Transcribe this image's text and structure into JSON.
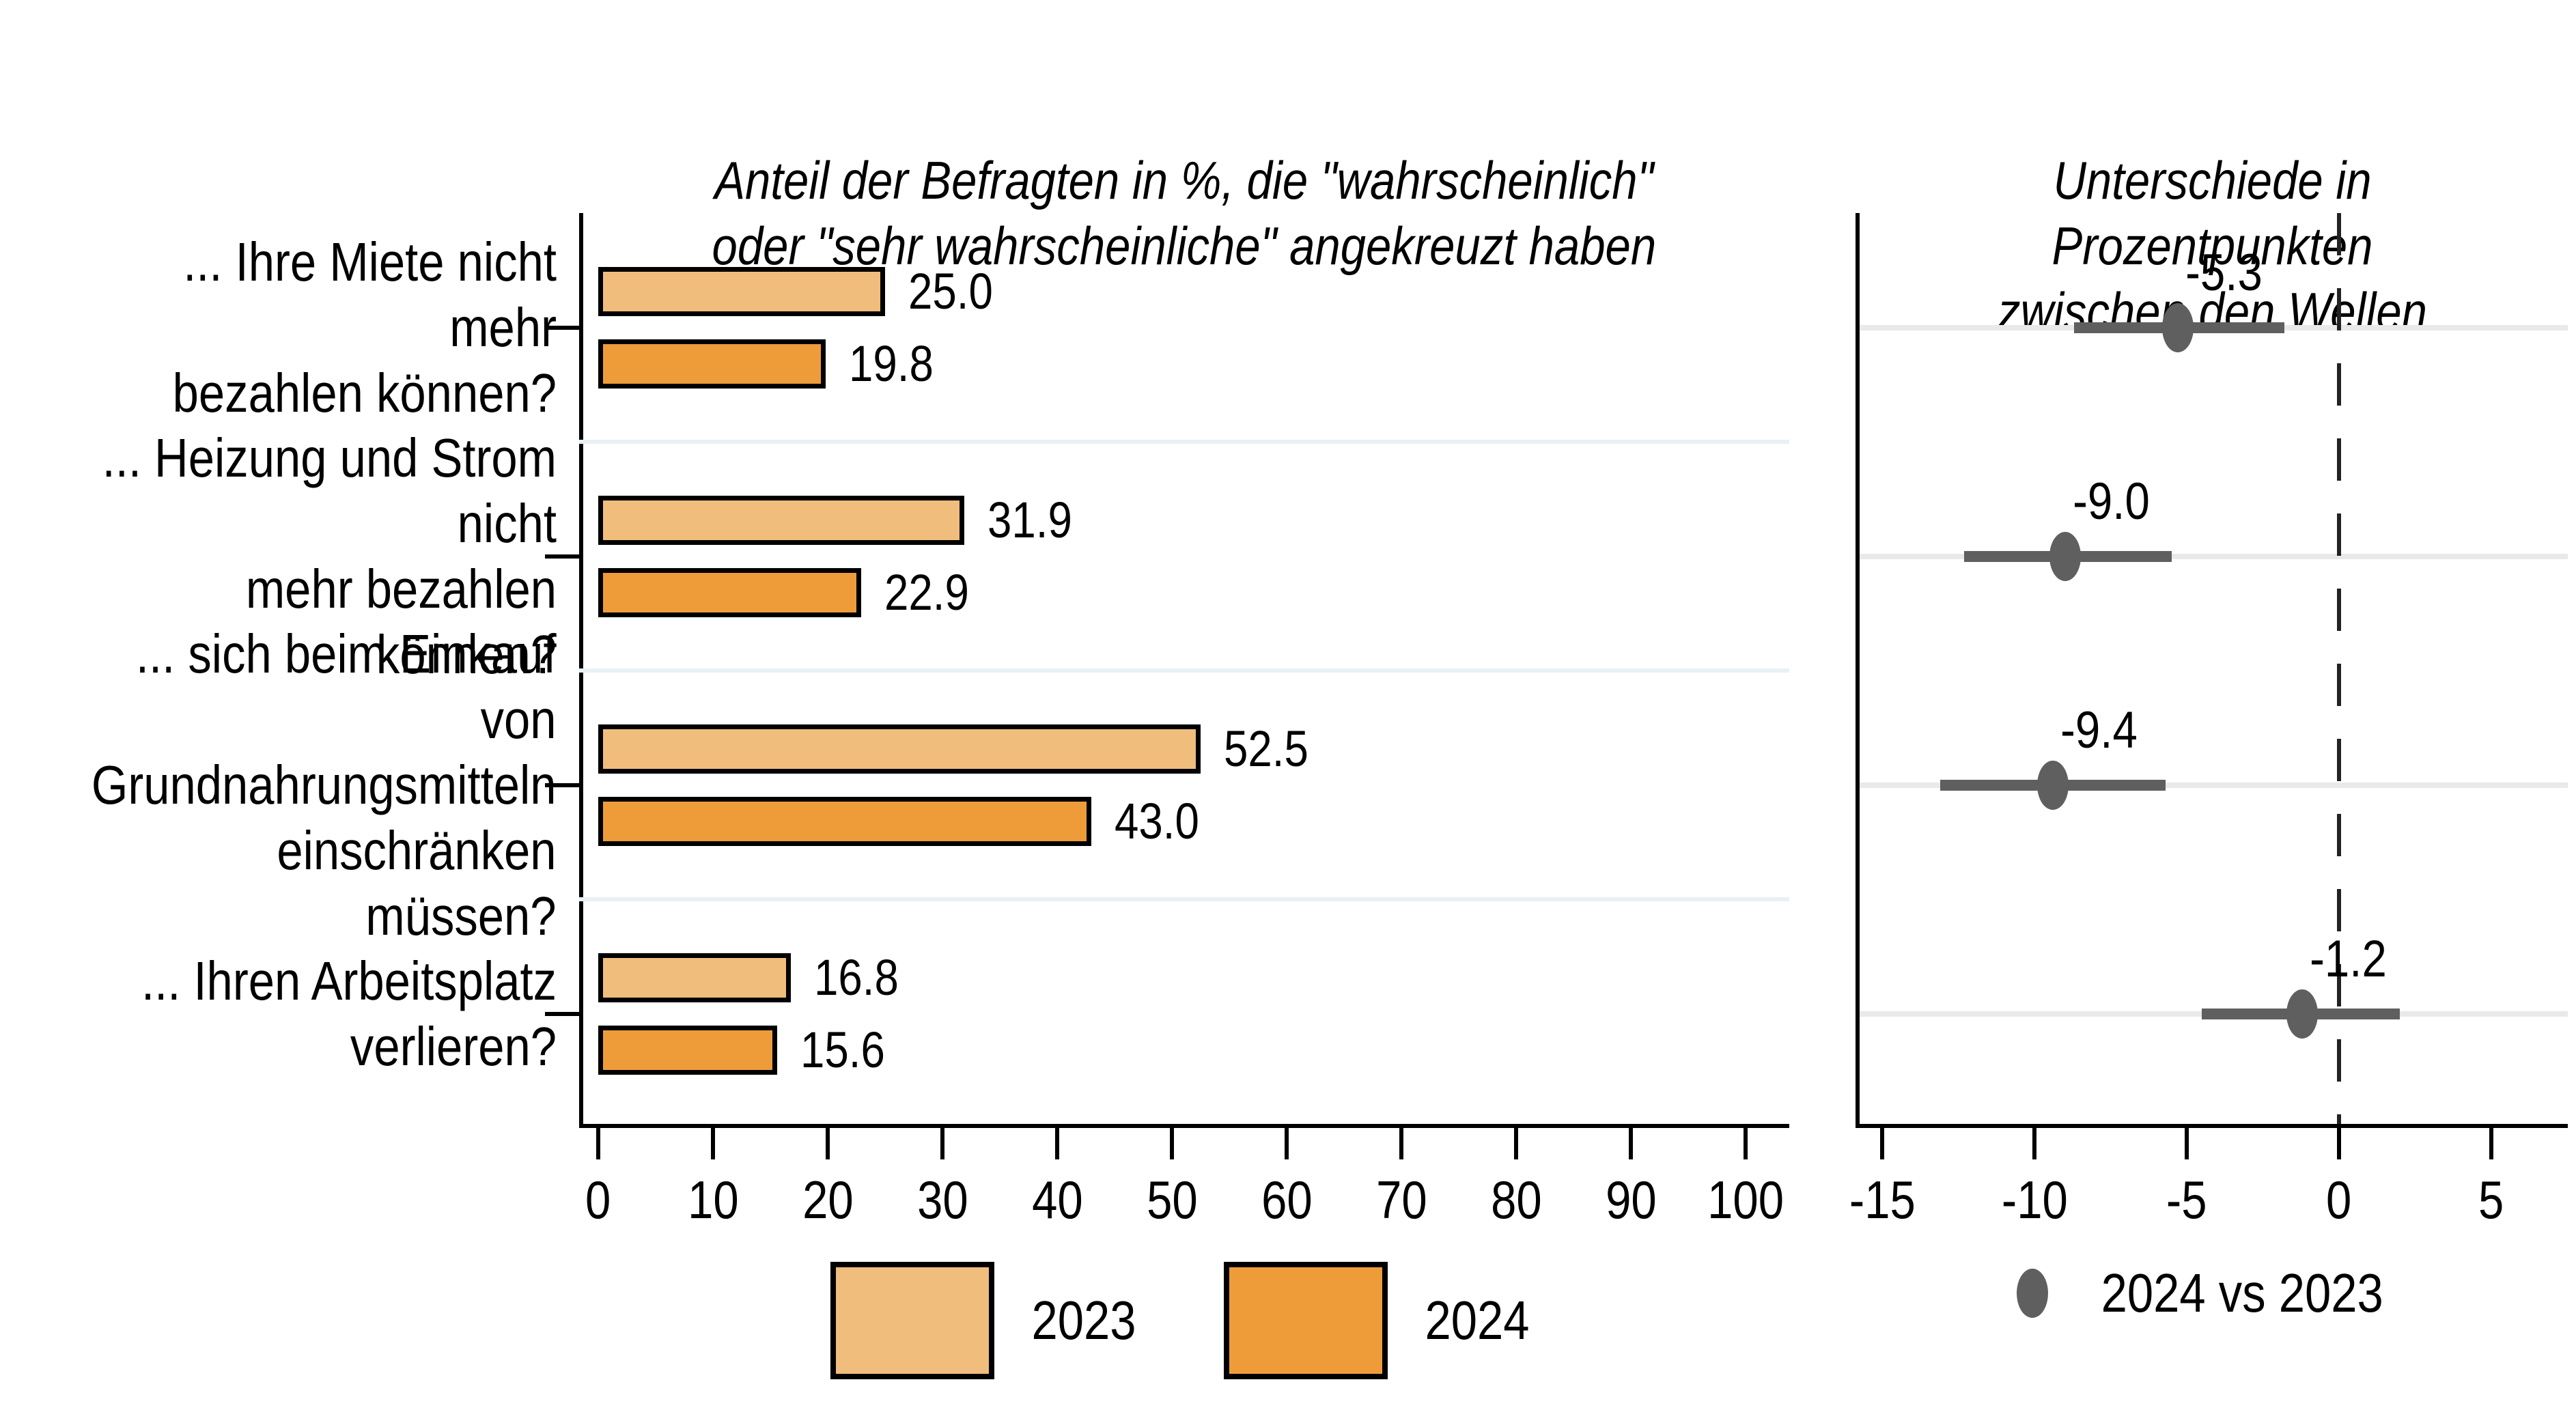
{
  "figure": {
    "left_title": "Anteil der Befragten in %, die \"wahrscheinlich\"\noder \"sehr wahrscheinliche\" angekreuzt haben",
    "right_title": "Unterschiede in Prozentpunkten\nzwischen den Wellen"
  },
  "chart_data": [
    {
      "type": "bar",
      "orientation": "horizontal",
      "panel": "left",
      "title": "Anteil der Befragten in %, die \"wahrscheinlich\" oder \"sehr wahrscheinliche\" angekreuzt haben",
      "categories": [
        "... Ihre Miete nicht mehr\nbezahlen können?",
        "... Heizung und Strom nicht\nmehr bezahlen können?",
        "... sich beim Einkauf von\nGrundnahrungsmitteln\neinschränken müssen?",
        "... Ihren Arbeitsplatz\nverlieren?"
      ],
      "series": [
        {
          "name": "2023",
          "color": "#f1bd7d",
          "values": [
            25.0,
            31.9,
            52.5,
            16.8
          ]
        },
        {
          "name": "2024",
          "color": "#ee9c3a",
          "values": [
            19.8,
            22.9,
            43.0,
            15.6
          ]
        }
      ],
      "xlim": [
        0,
        104
      ],
      "xticks": [
        0,
        10,
        20,
        30,
        40,
        50,
        60,
        70,
        80,
        90,
        100
      ],
      "data_labels": true,
      "bar_outline": "#000000",
      "separator_color": "#e8f1f3",
      "legend_position": "bottom"
    },
    {
      "type": "scatter",
      "panel": "right",
      "title": "Unterschiede in Prozentpunkten zwischen den Wellen",
      "series": [
        {
          "name": "2024 vs 2023",
          "color": "#5f5f5f",
          "estimates": [
            -5.3,
            -9.0,
            -9.4,
            -1.2
          ],
          "ci_low": [
            -8.7,
            -12.3,
            -13.1,
            -4.5
          ],
          "ci_high": [
            -1.8,
            -5.5,
            -5.7,
            2.0
          ]
        }
      ],
      "xlim": [
        -15.9,
        7.5
      ],
      "xticks": [
        -15,
        -10,
        -5,
        0,
        5
      ],
      "reference_line": 0,
      "gridline_color": "#e9e9e9",
      "legend_position": "bottom"
    }
  ]
}
